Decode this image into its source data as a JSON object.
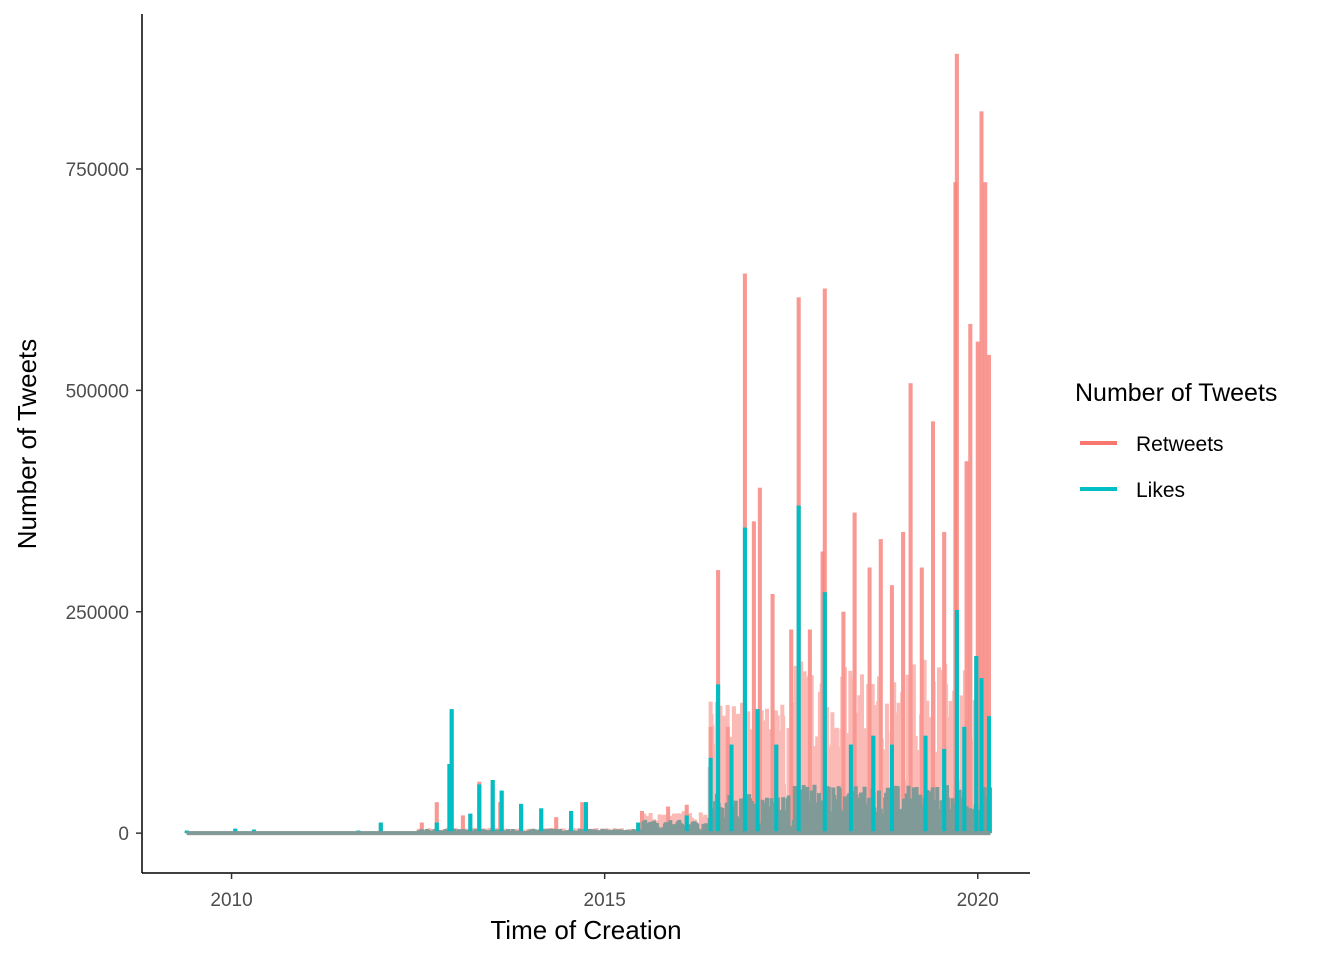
{
  "chart_data": {
    "type": "line",
    "xlabel": "Time of Creation",
    "ylabel": "Number of Tweets",
    "x_ticks": [
      "2010",
      "2015",
      "2020"
    ],
    "y_ticks": [
      "0",
      "250000",
      "500000",
      "750000"
    ],
    "xlim": [
      2008.8,
      2020.7
    ],
    "ylim": [
      -45000,
      925000
    ],
    "grid": false,
    "legend": {
      "title": "Number of Tweets",
      "position": "right",
      "entries": [
        "Retweets",
        "Likes"
      ]
    },
    "series": [
      {
        "name": "Retweets",
        "color": "#F8766D",
        "overlap_color": "#7F9A97",
        "peaks": [
          {
            "x": 2009.4,
            "y": 2000
          },
          {
            "x": 2010.05,
            "y": 4000
          },
          {
            "x": 2012.0,
            "y": 8000
          },
          {
            "x": 2012.55,
            "y": 12000
          },
          {
            "x": 2012.75,
            "y": 35000
          },
          {
            "x": 2012.92,
            "y": 78000
          },
          {
            "x": 2013.1,
            "y": 20000
          },
          {
            "x": 2013.32,
            "y": 58000
          },
          {
            "x": 2013.6,
            "y": 35000
          },
          {
            "x": 2013.88,
            "y": 25000
          },
          {
            "x": 2014.35,
            "y": 18000
          },
          {
            "x": 2014.7,
            "y": 35000
          },
          {
            "x": 2015.5,
            "y": 25000
          },
          {
            "x": 2015.85,
            "y": 30000
          },
          {
            "x": 2016.1,
            "y": 32000
          },
          {
            "x": 2016.42,
            "y": 120000
          },
          {
            "x": 2016.52,
            "y": 297000
          },
          {
            "x": 2016.65,
            "y": 120000
          },
          {
            "x": 2016.88,
            "y": 632000
          },
          {
            "x": 2017.0,
            "y": 352000
          },
          {
            "x": 2017.08,
            "y": 390000
          },
          {
            "x": 2017.25,
            "y": 270000
          },
          {
            "x": 2017.5,
            "y": 230000
          },
          {
            "x": 2017.6,
            "y": 605000
          },
          {
            "x": 2017.75,
            "y": 230000
          },
          {
            "x": 2017.92,
            "y": 318000
          },
          {
            "x": 2017.95,
            "y": 615000
          },
          {
            "x": 2018.2,
            "y": 250000
          },
          {
            "x": 2018.35,
            "y": 362000
          },
          {
            "x": 2018.55,
            "y": 300000
          },
          {
            "x": 2018.7,
            "y": 332000
          },
          {
            "x": 2018.85,
            "y": 280000
          },
          {
            "x": 2019.0,
            "y": 340000
          },
          {
            "x": 2019.1,
            "y": 508000
          },
          {
            "x": 2019.25,
            "y": 300000
          },
          {
            "x": 2019.4,
            "y": 465000
          },
          {
            "x": 2019.55,
            "y": 340000
          },
          {
            "x": 2019.7,
            "y": 735000
          },
          {
            "x": 2019.72,
            "y": 880000
          },
          {
            "x": 2019.85,
            "y": 420000
          },
          {
            "x": 2019.9,
            "y": 575000
          },
          {
            "x": 2020.0,
            "y": 555000
          },
          {
            "x": 2020.05,
            "y": 815000
          },
          {
            "x": 2020.1,
            "y": 735000
          },
          {
            "x": 2020.15,
            "y": 540000
          }
        ]
      },
      {
        "name": "Likes",
        "color": "#00BFC4",
        "peaks": [
          {
            "x": 2009.4,
            "y": 3000
          },
          {
            "x": 2010.05,
            "y": 5000
          },
          {
            "x": 2010.3,
            "y": 4000
          },
          {
            "x": 2011.7,
            "y": 3000
          },
          {
            "x": 2012.0,
            "y": 12000
          },
          {
            "x": 2012.75,
            "y": 12000
          },
          {
            "x": 2012.92,
            "y": 78000
          },
          {
            "x": 2012.95,
            "y": 140000
          },
          {
            "x": 2013.2,
            "y": 22000
          },
          {
            "x": 2013.32,
            "y": 55000
          },
          {
            "x": 2013.5,
            "y": 60000
          },
          {
            "x": 2013.62,
            "y": 48000
          },
          {
            "x": 2013.88,
            "y": 33000
          },
          {
            "x": 2014.15,
            "y": 28000
          },
          {
            "x": 2014.55,
            "y": 25000
          },
          {
            "x": 2014.75,
            "y": 35000
          },
          {
            "x": 2015.45,
            "y": 12000
          },
          {
            "x": 2016.1,
            "y": 20000
          },
          {
            "x": 2016.42,
            "y": 85000
          },
          {
            "x": 2016.52,
            "y": 168000
          },
          {
            "x": 2016.7,
            "y": 100000
          },
          {
            "x": 2016.88,
            "y": 345000
          },
          {
            "x": 2017.05,
            "y": 140000
          },
          {
            "x": 2017.3,
            "y": 100000
          },
          {
            "x": 2017.6,
            "y": 370000
          },
          {
            "x": 2017.95,
            "y": 272000
          },
          {
            "x": 2018.3,
            "y": 100000
          },
          {
            "x": 2018.6,
            "y": 110000
          },
          {
            "x": 2018.85,
            "y": 100000
          },
          {
            "x": 2019.3,
            "y": 110000
          },
          {
            "x": 2019.55,
            "y": 95000
          },
          {
            "x": 2019.72,
            "y": 252000
          },
          {
            "x": 2019.82,
            "y": 120000
          },
          {
            "x": 2019.98,
            "y": 200000
          },
          {
            "x": 2020.05,
            "y": 175000
          },
          {
            "x": 2020.15,
            "y": 132000
          }
        ]
      }
    ]
  }
}
